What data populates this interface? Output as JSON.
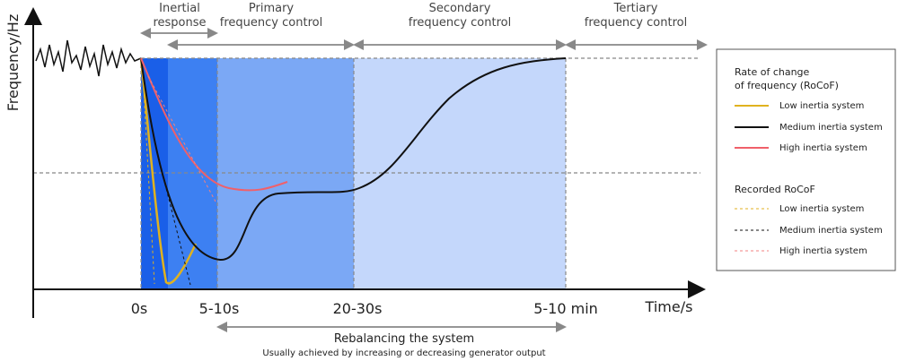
{
  "axes": {
    "y_label": "Frequency/Hz",
    "x_label": "Time/s",
    "x_points": [
      "0s",
      "5-10s",
      "20-30s",
      "5-10 min"
    ]
  },
  "phases": [
    {
      "lines": [
        "Inertial",
        "response"
      ]
    },
    {
      "lines": [
        "Primary",
        "frequency control"
      ]
    },
    {
      "lines": [
        "Secondary",
        "frequency control"
      ]
    },
    {
      "lines": [
        "Tertiary",
        "frequency control"
      ]
    }
  ],
  "bottom": {
    "title": "Rebalancing the system",
    "subtitle": "Usually achieved by increasing or decreasing generator output"
  },
  "legend": {
    "rocof": {
      "title_lines": [
        "Rate of change",
        "of frequency (RoCoF)"
      ],
      "items": [
        "Low inertia system",
        "Medium inertia system",
        "High inertia system"
      ]
    },
    "recorded": {
      "title": "Recorded RoCoF",
      "items": [
        "Low inertia system",
        "Medium inertia system",
        "High inertia system"
      ]
    }
  }
}
